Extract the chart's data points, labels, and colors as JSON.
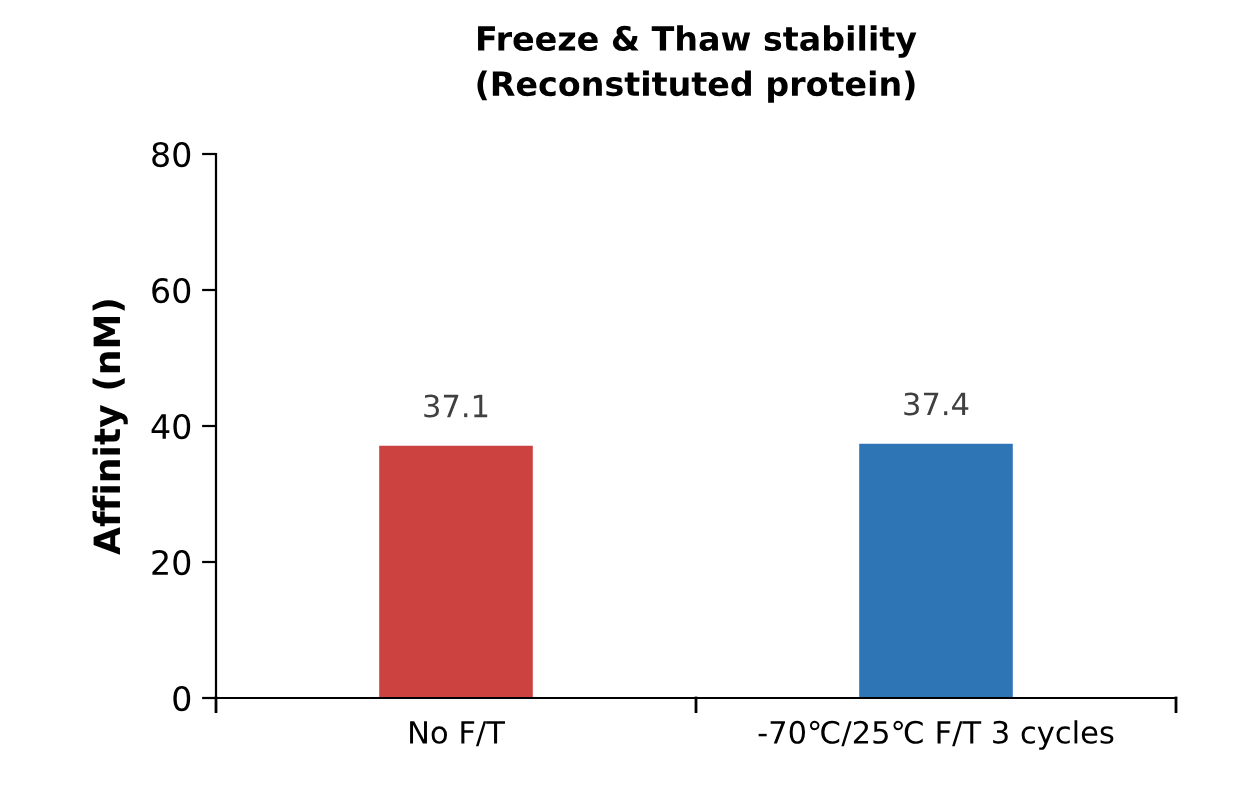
{
  "chart_data": {
    "type": "bar",
    "title": "Freeze & Thaw stability\n(Reconstituted protein)",
    "ylabel": "Affinity (nM)",
    "categories": [
      "No F/T",
      "-70℃/25℃ F/T 3 cycles"
    ],
    "values": [
      37.1,
      37.4
    ],
    "colors": [
      "#cc4240",
      "#2e75b6"
    ],
    "ylim": [
      0,
      80
    ],
    "yticks": [
      0,
      20,
      40,
      60,
      80
    ],
    "grid": false,
    "data_labels": true
  }
}
